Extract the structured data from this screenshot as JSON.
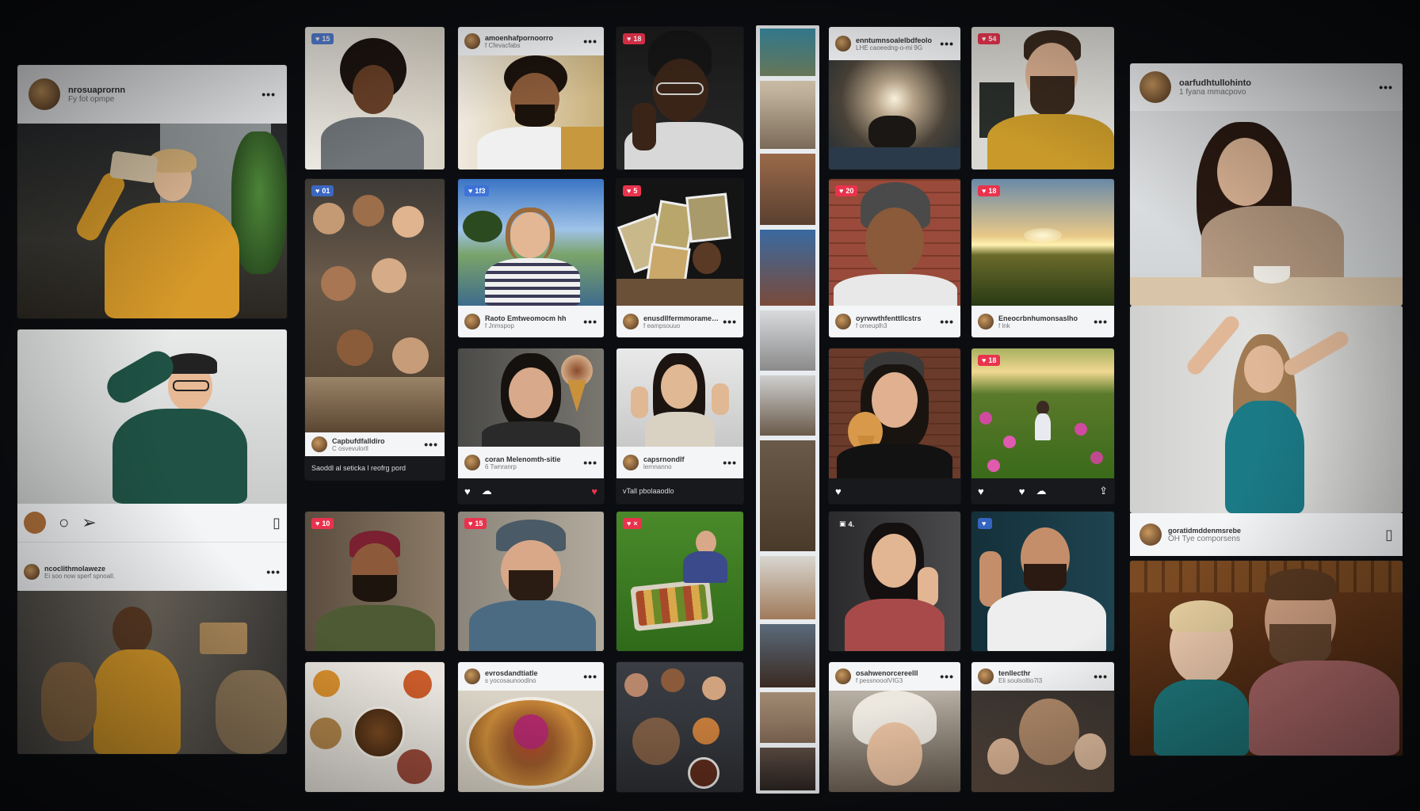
{
  "left_column": {
    "top_post": {
      "username": "nrosuaprornn",
      "subtitle": "Fy fot opmpe",
      "menu": "•••"
    },
    "middle_post": {
      "menu": "•••"
    },
    "bottom_post": {
      "username": "ncoclithmolaweze",
      "subtitle": "Ei soo now sperf spnoall.",
      "menu": "•••"
    }
  },
  "col2": {
    "top_badge": "15",
    "crowd_badge": "01",
    "post_a": {
      "username": "Capbufdfalldiro",
      "subtitle": "C osvevulorll",
      "menu": "•••"
    },
    "footer_text": "Saoddl al seticka l reofrg pord",
    "bottom_badge": "10"
  },
  "col3": {
    "top_post": {
      "username": "amoenhafpornoorro",
      "subtitle": "f Cfevacfabs",
      "menu": "•••"
    },
    "lake_badge": "1f3",
    "post_b": {
      "username": "Raoto Emtweomocm hh",
      "subtitle": "f Jnmspop",
      "menu": "•••"
    },
    "post_c": {
      "username": "coran Melenomth-sitie",
      "subtitle": "6 Twnranrp",
      "menu": "•••"
    },
    "bottom_badge": "15",
    "post_d": {
      "username": "evrosdandtiatle",
      "subtitle": "s yocosaunoodlno",
      "menu": "•••"
    }
  },
  "col4": {
    "top_badge": "18",
    "cards_badge": "5",
    "post_a": {
      "username": "enusdllfermmoramenolle",
      "subtitle": "f eampsouuo",
      "menu": "•••"
    },
    "post_b": {
      "username": "capsrnondlf",
      "subtitle": "lernnanno",
      "menu": "•••"
    },
    "footer_text": "vTall pbolaaodlo",
    "grass_badge": "×"
  },
  "col6": {
    "top_post": {
      "username": "enntumnsoalelbdfeolo",
      "subtitle": "LHE caoeedng-o-mi 9G",
      "menu": "•••"
    },
    "brick_badge": "20",
    "post_a": {
      "username": "oyrwwthfenttllcstrs",
      "subtitle": "f omeuplh3",
      "menu": "•••"
    },
    "dark_badge": "4.",
    "post_b": {
      "username": "osahwenorcereelll",
      "subtitle": "f pessnooolVIG3",
      "menu": "•••"
    }
  },
  "col7": {
    "top_badge": "54",
    "sunset_badge": "18",
    "post_a": {
      "username": "Eneocrbnhumonsaslho",
      "subtitle": "f lnk",
      "menu": "•••"
    },
    "meadow_badge": "18",
    "bottom_badge": "",
    "post_b": {
      "username": "tenllecthr",
      "subtitle": "Eli soulsoltio7l3",
      "menu": "•••"
    }
  },
  "right_column": {
    "top_post": {
      "username": "oarfudhtullohinto",
      "subtitle": "1 fyana mmacpovo",
      "menu": "•••"
    },
    "mid_post": {
      "username": "goratidmddenmsrebe",
      "subtitle": "OH Tye comporsens"
    }
  },
  "colors": {
    "background": "#0b0d10",
    "like": "#e9334d",
    "accent_blue": "#3b6fd8"
  }
}
